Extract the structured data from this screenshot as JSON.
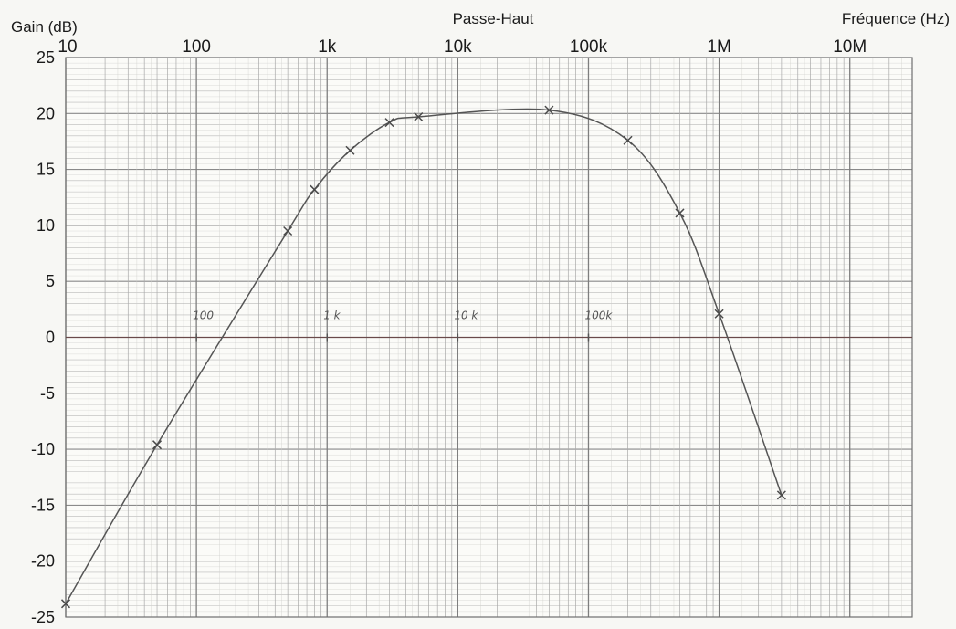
{
  "chart_data": {
    "type": "line",
    "title": "Passe-Haut",
    "xlabel": "Fréquence (Hz)",
    "ylabel": "Gain (dB)",
    "x_scale": "log",
    "xlim": [
      10,
      30000000
    ],
    "ylim": [
      -25,
      25
    ],
    "grid": true,
    "xticks": [
      {
        "value": 10,
        "label": "10"
      },
      {
        "value": 100,
        "label": "100"
      },
      {
        "value": 1000,
        "label": "1k"
      },
      {
        "value": 10000,
        "label": "10k"
      },
      {
        "value": 100000,
        "label": "100k"
      },
      {
        "value": 1000000,
        "label": "1M"
      },
      {
        "value": 10000000,
        "label": "10M"
      }
    ],
    "yticks": [
      25,
      20,
      15,
      10,
      5,
      0,
      -5,
      -10,
      -15,
      -20,
      -25
    ],
    "handwritten_marks": [
      {
        "value": 100,
        "label": "100"
      },
      {
        "value": 1000,
        "label": "1 k"
      },
      {
        "value": 10000,
        "label": "10 k"
      },
      {
        "value": 100000,
        "label": "100k"
      }
    ],
    "series": [
      {
        "color": "#555555",
        "points": [
          {
            "x": 10,
            "y": -23.8
          },
          {
            "x": 50,
            "y": -9.6
          },
          {
            "x": 500,
            "y": 9.5
          },
          {
            "x": 800,
            "y": 13.2
          },
          {
            "x": 1500,
            "y": 16.7
          },
          {
            "x": 3000,
            "y": 19.2
          },
          {
            "x": 5000,
            "y": 19.7
          },
          {
            "x": 50000,
            "y": 20.3
          },
          {
            "x": 200000,
            "y": 17.6
          },
          {
            "x": 500000,
            "y": 11.1
          },
          {
            "x": 1000000,
            "y": 2.1
          },
          {
            "x": 3000000,
            "y": -14.1
          }
        ]
      }
    ]
  }
}
